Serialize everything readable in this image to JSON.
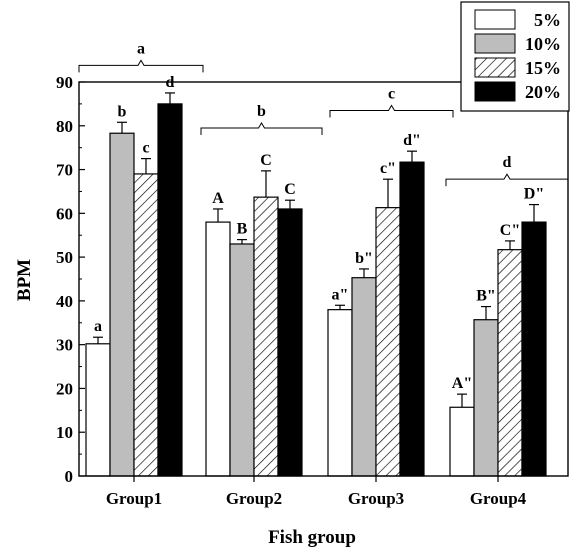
{
  "chart_data": {
    "type": "bar",
    "xlabel": "Fish group",
    "ylabel": "BPM",
    "ylim": [
      0,
      90
    ],
    "yticks": [
      0,
      10,
      20,
      30,
      40,
      50,
      60,
      70,
      80,
      90
    ],
    "categories": [
      "Group1",
      "Group2",
      "Group3",
      "Group4"
    ],
    "series": [
      {
        "name": "5%",
        "fill": "white",
        "values": [
          30.2,
          58.0,
          38.0,
          15.7
        ],
        "errors": [
          1.5,
          3.0,
          1.0,
          3.0
        ],
        "labels": [
          "a",
          "A",
          "a\"",
          "A\""
        ]
      },
      {
        "name": "10%",
        "fill": "gray",
        "values": [
          78.3,
          53.0,
          45.3,
          35.7
        ],
        "errors": [
          2.5,
          1.0,
          2.0,
          3.0
        ],
        "labels": [
          "b",
          "B",
          "b\"",
          "B\""
        ]
      },
      {
        "name": "15%",
        "fill": "hatched",
        "values": [
          69.0,
          63.7,
          61.3,
          51.7
        ],
        "errors": [
          3.5,
          6.0,
          6.5,
          2.0
        ],
        "labels": [
          "c",
          "C",
          "c\"",
          "C\""
        ]
      },
      {
        "name": "20%",
        "fill": "black",
        "values": [
          85.0,
          61.0,
          71.7,
          58.0
        ],
        "errors": [
          2.5,
          2.0,
          2.5,
          4.0
        ],
        "labels": [
          "d",
          "C",
          "d\"",
          "D\""
        ]
      }
    ],
    "group_brackets": [
      {
        "category": "Group1",
        "label": "a"
      },
      {
        "category": "Group2",
        "label": "b"
      },
      {
        "category": "Group3",
        "label": "c"
      },
      {
        "category": "Group4",
        "label": "d"
      }
    ],
    "legend": {
      "placement": "top-right",
      "entries": [
        "5%",
        "10%",
        "15%",
        "20%"
      ]
    },
    "colors": {
      "white": "#ffffff",
      "gray": "#bdbdbd",
      "black": "#000000",
      "hatch": "#000000"
    },
    "grid": false
  }
}
